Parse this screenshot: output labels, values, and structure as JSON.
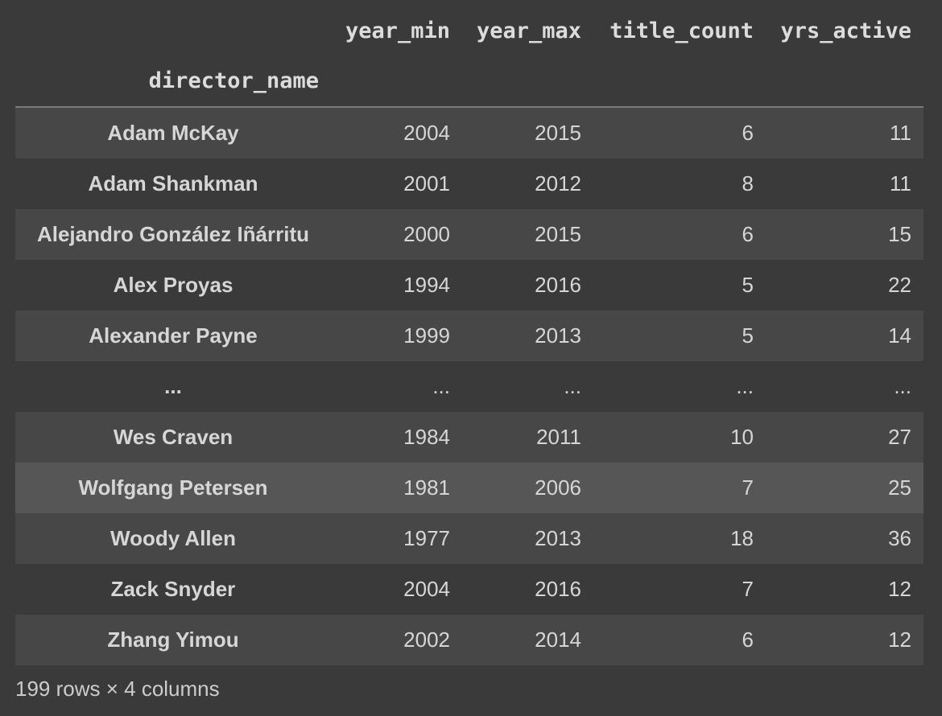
{
  "table": {
    "index_name": "director_name",
    "columns": [
      "year_min",
      "year_max",
      "title_count",
      "yrs_active"
    ],
    "rows": [
      {
        "index": "Adam McKay",
        "values": [
          "2004",
          "2015",
          "6",
          "11"
        ],
        "highlighted": false
      },
      {
        "index": "Adam Shankman",
        "values": [
          "2001",
          "2012",
          "8",
          "11"
        ],
        "highlighted": false
      },
      {
        "index": "Alejandro González Iñárritu",
        "values": [
          "2000",
          "2015",
          "6",
          "15"
        ],
        "highlighted": false
      },
      {
        "index": "Alex Proyas",
        "values": [
          "1994",
          "2016",
          "5",
          "22"
        ],
        "highlighted": false
      },
      {
        "index": "Alexander Payne",
        "values": [
          "1999",
          "2013",
          "5",
          "14"
        ],
        "highlighted": false
      },
      {
        "index": "...",
        "values": [
          "...",
          "...",
          "...",
          "..."
        ],
        "highlighted": false
      },
      {
        "index": "Wes Craven",
        "values": [
          "1984",
          "2011",
          "10",
          "27"
        ],
        "highlighted": false
      },
      {
        "index": "Wolfgang Petersen",
        "values": [
          "1981",
          "2006",
          "7",
          "25"
        ],
        "highlighted": true
      },
      {
        "index": "Woody Allen",
        "values": [
          "1977",
          "2013",
          "18",
          "36"
        ],
        "highlighted": false
      },
      {
        "index": "Zack Snyder",
        "values": [
          "2004",
          "2016",
          "7",
          "12"
        ],
        "highlighted": false
      },
      {
        "index": "Zhang Yimou",
        "values": [
          "2002",
          "2014",
          "6",
          "12"
        ],
        "highlighted": false
      }
    ],
    "footer": "199 rows × 4 columns"
  },
  "chart_data": {
    "type": "table",
    "index_name": "director_name",
    "columns": [
      "year_min",
      "year_max",
      "title_count",
      "yrs_active"
    ],
    "rows": [
      [
        "Adam McKay",
        2004,
        2015,
        6,
        11
      ],
      [
        "Adam Shankman",
        2001,
        2012,
        8,
        11
      ],
      [
        "Alejandro González Iñárritu",
        2000,
        2015,
        6,
        15
      ],
      [
        "Alex Proyas",
        1994,
        2016,
        5,
        22
      ],
      [
        "Alexander Payne",
        1999,
        2013,
        5,
        14
      ],
      [
        "...",
        "...",
        "...",
        "...",
        "..."
      ],
      [
        "Wes Craven",
        1984,
        2011,
        10,
        27
      ],
      [
        "Wolfgang Petersen",
        1981,
        2006,
        7,
        25
      ],
      [
        "Woody Allen",
        1977,
        2013,
        18,
        36
      ],
      [
        "Zack Snyder",
        2004,
        2016,
        7,
        12
      ],
      [
        "Zhang Yimou",
        2002,
        2014,
        6,
        12
      ]
    ],
    "footer": "199 rows × 4 columns"
  },
  "colors": {
    "background": "#3a3a3a",
    "row_stripe": "#474747",
    "row_highlight": "#565656",
    "header_rule": "#7a7a7a",
    "header_text": "#dcdcdc",
    "cell_text": "#d6d6d6",
    "footer_text": "#cccccc"
  }
}
